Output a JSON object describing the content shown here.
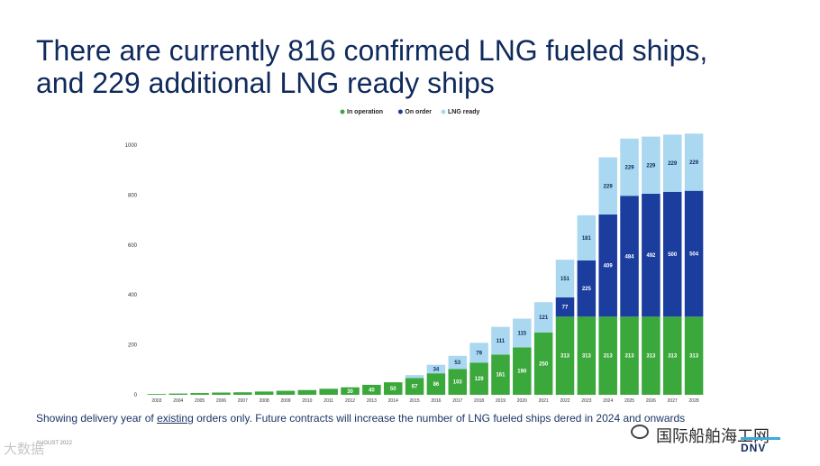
{
  "title": {
    "line1": "There are currently 816 confirmed LNG fueled ships,",
    "line2": "and 229 additional LNG ready ships"
  },
  "footnote": {
    "before": "Showing delivery year of ",
    "underlined": "existing",
    "after": " orders only. Future contracts will increase the number of LNG fueled ships d",
    "tail": "ered in 2024 and onwards"
  },
  "source_text": "AUGUST 2022",
  "watermark": "大数据",
  "site_text": "国际船舶海工网",
  "logo_text": "DNV",
  "colors": {
    "in_operation": "#3aa83a",
    "on_order": "#1a3d9e",
    "lng_ready": "#a9d8f0",
    "title": "#0f2a5c"
  },
  "chart_data": {
    "type": "bar",
    "stacked": true,
    "legend_position": "top",
    "ylim": [
      0,
      1000
    ],
    "yticks": [
      0,
      200,
      400,
      600,
      800,
      1000
    ],
    "categories": [
      "2003",
      "2004",
      "2005",
      "2006",
      "2007",
      "2008",
      "2009",
      "2010",
      "2011",
      "2012",
      "2013",
      "2014",
      "2015",
      "2016",
      "2017",
      "2018",
      "2019",
      "2020",
      "2021",
      "2022",
      "2023",
      "2024",
      "2025",
      "2026",
      "2027",
      "2028"
    ],
    "series": [
      {
        "name": "In operation",
        "color": "#3aa83a",
        "values": [
          3,
          5,
          7,
          9,
          10,
          13,
          16,
          19,
          24,
          30,
          40,
          50,
          67,
          86,
          103,
          129,
          161,
          190,
          250,
          313,
          313,
          313,
          313,
          313,
          313,
          313
        ],
        "labels": [
          "",
          "",
          "",
          "",
          "",
          "",
          "",
          "",
          "",
          "30",
          "40",
          "50",
          "67",
          "86",
          "103",
          "129",
          "161",
          "190",
          "250",
          "313",
          "313",
          "313",
          "313",
          "313",
          "313",
          "313"
        ]
      },
      {
        "name": "On order",
        "color": "#1a3d9e",
        "values": [
          0,
          0,
          0,
          0,
          0,
          0,
          0,
          0,
          0,
          0,
          0,
          0,
          0,
          0,
          0,
          0,
          0,
          0,
          0,
          77,
          225,
          409,
          484,
          492,
          500,
          504
        ],
        "labels": [
          "",
          "",
          "",
          "",
          "",
          "",
          "",
          "",
          "",
          "",
          "",
          "",
          "",
          "",
          "",
          "",
          "",
          "",
          "",
          "77",
          "225",
          "409",
          "484",
          "492",
          "500",
          "504"
        ]
      },
      {
        "name": "LNG ready",
        "color": "#a9d8f0",
        "values": [
          0,
          0,
          0,
          0,
          0,
          0,
          0,
          0,
          0,
          0,
          0,
          0,
          12,
          34,
          53,
          79,
          111,
          115,
          121,
          151,
          181,
          229,
          229,
          229,
          229,
          229
        ],
        "labels": [
          "",
          "",
          "",
          "",
          "",
          "",
          "",
          "",
          "",
          "",
          "",
          "",
          "",
          "34",
          "53",
          "79",
          "111",
          "115",
          "121",
          "151",
          "181",
          "229",
          "229",
          "229",
          "229",
          "229"
        ]
      }
    ]
  }
}
